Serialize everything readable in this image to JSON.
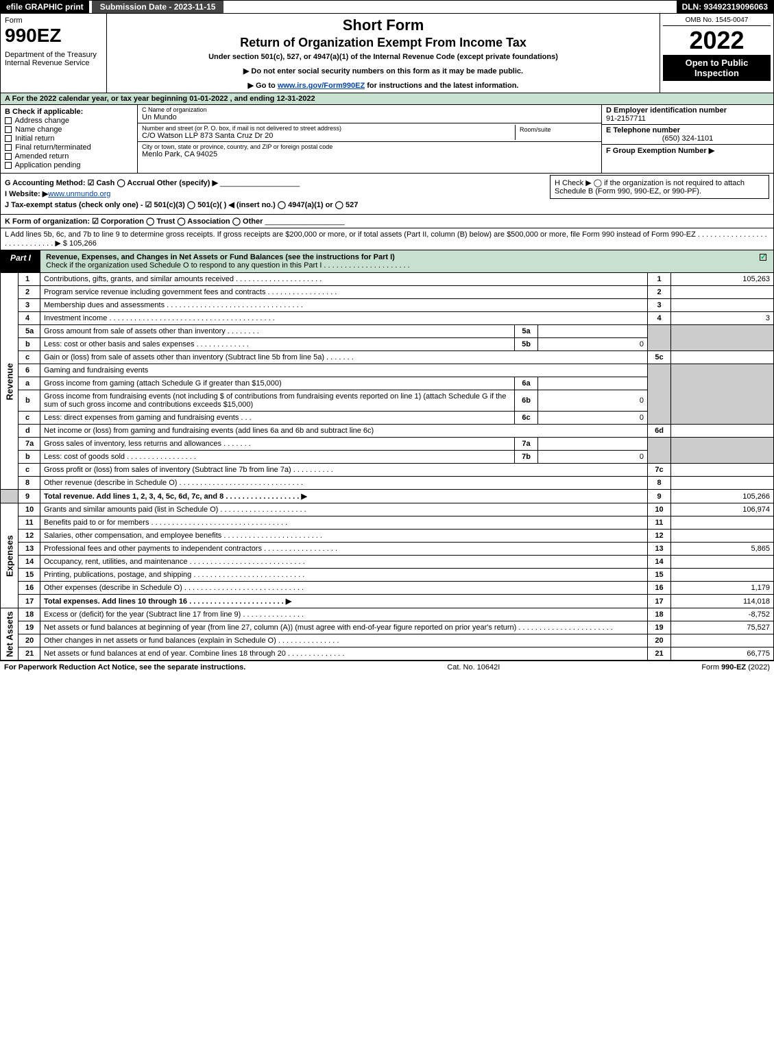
{
  "topbar": {
    "efile": "efile GRAPHIC print",
    "submission": "Submission Date - 2023-11-15",
    "dln": "DLN: 93492319096063"
  },
  "header": {
    "form_label": "Form",
    "form_number": "990EZ",
    "dept": "Department of the Treasury\nInternal Revenue Service",
    "title1": "Short Form",
    "title2": "Return of Organization Exempt From Income Tax",
    "subtitle": "Under section 501(c), 527, or 4947(a)(1) of the Internal Revenue Code (except private foundations)",
    "instr1": "▶ Do not enter social security numbers on this form as it may be made public.",
    "instr2_pre": "▶ Go to ",
    "instr2_link": "www.irs.gov/Form990EZ",
    "instr2_post": " for instructions and the latest information.",
    "omb": "OMB No. 1545-0047",
    "year": "2022",
    "inspection": "Open to Public Inspection"
  },
  "A": "A  For the 2022 calendar year, or tax year beginning 01-01-2022 , and ending 12-31-2022",
  "B": {
    "label": "B  Check if applicable:",
    "opts": [
      "Address change",
      "Name change",
      "Initial return",
      "Final return/terminated",
      "Amended return",
      "Application pending"
    ]
  },
  "C": {
    "name_label": "C Name of organization",
    "name": "Un Mundo",
    "addr_label": "Number and street (or P. O. box, if mail is not delivered to street address)",
    "addr": "C/O Watson LLP 873 Santa Cruz Dr 20",
    "room_label": "Room/suite",
    "city_label": "City or town, state or province, country, and ZIP or foreign postal code",
    "city": "Menlo Park, CA  94025"
  },
  "D": {
    "label": "D Employer identification number",
    "value": "91-2157711"
  },
  "E": {
    "label": "E Telephone number",
    "value": "(650) 324-1101"
  },
  "F": {
    "label": "F Group Exemption Number   ▶",
    "value": ""
  },
  "G": "G Accounting Method:   ☑ Cash  ◯ Accrual   Other (specify) ▶",
  "H": "H   Check ▶  ◯  if the organization is not required to attach Schedule B (Form 990, 990-EZ, or 990-PF).",
  "I_pre": "I Website: ▶",
  "I_link": "www.unmundo.org",
  "J": "J Tax-exempt status (check only one) - ☑ 501(c)(3) ◯ 501(c)(  ) ◀ (insert no.) ◯ 4947(a)(1) or ◯ 527",
  "K": "K Form of organization:   ☑ Corporation   ◯ Trust   ◯ Association   ◯ Other",
  "L": {
    "text": "L Add lines 5b, 6c, and 7b to line 9 to determine gross receipts. If gross receipts are $200,000 or more, or if total assets (Part II, column (B) below) are $500,000 or more, file Form 990 instead of Form 990-EZ . . . . . . . . . . . . . . . . . . . . . . . . . . . . . ▶ $",
    "value": "105,266"
  },
  "part1": {
    "tab": "Part I",
    "title": "Revenue, Expenses, and Changes in Net Assets or Fund Balances (see the instructions for Part I)",
    "subtitle": "Check if the organization used Schedule O to respond to any question in this Part I . . . . . . . . . . . . . . . . . . . . ."
  },
  "sides": {
    "rev": "Revenue",
    "exp": "Expenses",
    "net": "Net Assets"
  },
  "lines": {
    "l1": {
      "n": "1",
      "d": "Contributions, gifts, grants, and similar amounts received",
      "rn": "1",
      "rv": "105,263"
    },
    "l2": {
      "n": "2",
      "d": "Program service revenue including government fees and contracts",
      "rn": "2",
      "rv": ""
    },
    "l3": {
      "n": "3",
      "d": "Membership dues and assessments",
      "rn": "3",
      "rv": ""
    },
    "l4": {
      "n": "4",
      "d": "Investment income",
      "rn": "4",
      "rv": "3"
    },
    "l5a": {
      "n": "5a",
      "d": "Gross amount from sale of assets other than inventory",
      "in": "5a",
      "iv": ""
    },
    "l5b": {
      "n": "b",
      "d": "Less: cost or other basis and sales expenses",
      "in": "5b",
      "iv": "0"
    },
    "l5c": {
      "n": "c",
      "d": "Gain or (loss) from sale of assets other than inventory (Subtract line 5b from line 5a)",
      "rn": "5c",
      "rv": ""
    },
    "l6": {
      "n": "6",
      "d": "Gaming and fundraising events"
    },
    "l6a": {
      "n": "a",
      "d": "Gross income from gaming (attach Schedule G if greater than $15,000)",
      "in": "6a",
      "iv": ""
    },
    "l6b": {
      "n": "b",
      "d": "Gross income from fundraising events (not including $                  of contributions from fundraising events reported on line 1) (attach Schedule G if the sum of such gross income and contributions exceeds $15,000)",
      "in": "6b",
      "iv": "0"
    },
    "l6c": {
      "n": "c",
      "d": "Less: direct expenses from gaming and fundraising events",
      "in": "6c",
      "iv": "0"
    },
    "l6d": {
      "n": "d",
      "d": "Net income or (loss) from gaming and fundraising events (add lines 6a and 6b and subtract line 6c)",
      "rn": "6d",
      "rv": ""
    },
    "l7a": {
      "n": "7a",
      "d": "Gross sales of inventory, less returns and allowances",
      "in": "7a",
      "iv": ""
    },
    "l7b": {
      "n": "b",
      "d": "Less: cost of goods sold",
      "in": "7b",
      "iv": "0"
    },
    "l7c": {
      "n": "c",
      "d": "Gross profit or (loss) from sales of inventory (Subtract line 7b from line 7a)",
      "rn": "7c",
      "rv": ""
    },
    "l8": {
      "n": "8",
      "d": "Other revenue (describe in Schedule O)",
      "rn": "8",
      "rv": ""
    },
    "l9": {
      "n": "9",
      "d": "Total revenue. Add lines 1, 2, 3, 4, 5c, 6d, 7c, and 8   . . . . . . . . . . . . . . . . . .  ▶",
      "rn": "9",
      "rv": "105,266"
    },
    "l10": {
      "n": "10",
      "d": "Grants and similar amounts paid (list in Schedule O)",
      "rn": "10",
      "rv": "106,974"
    },
    "l11": {
      "n": "11",
      "d": "Benefits paid to or for members",
      "rn": "11",
      "rv": ""
    },
    "l12": {
      "n": "12",
      "d": "Salaries, other compensation, and employee benefits",
      "rn": "12",
      "rv": ""
    },
    "l13": {
      "n": "13",
      "d": "Professional fees and other payments to independent contractors",
      "rn": "13",
      "rv": "5,865"
    },
    "l14": {
      "n": "14",
      "d": "Occupancy, rent, utilities, and maintenance",
      "rn": "14",
      "rv": ""
    },
    "l15": {
      "n": "15",
      "d": "Printing, publications, postage, and shipping",
      "rn": "15",
      "rv": ""
    },
    "l16": {
      "n": "16",
      "d": "Other expenses (describe in Schedule O)",
      "rn": "16",
      "rv": "1,179"
    },
    "l17": {
      "n": "17",
      "d": "Total expenses. Add lines 10 through 16    . . . . . . . . . . . . . . . . . . . . . . .  ▶",
      "rn": "17",
      "rv": "114,018"
    },
    "l18": {
      "n": "18",
      "d": "Excess or (deficit) for the year (Subtract line 17 from line 9)",
      "rn": "18",
      "rv": "-8,752"
    },
    "l19": {
      "n": "19",
      "d": "Net assets or fund balances at beginning of year (from line 27, column (A)) (must agree with end-of-year figure reported on prior year's return)",
      "rn": "19",
      "rv": "75,527"
    },
    "l20": {
      "n": "20",
      "d": "Other changes in net assets or fund balances (explain in Schedule O)",
      "rn": "20",
      "rv": ""
    },
    "l21": {
      "n": "21",
      "d": "Net assets or fund balances at end of year. Combine lines 18 through 20",
      "rn": "21",
      "rv": "66,775"
    }
  },
  "footer": {
    "left": "For Paperwork Reduction Act Notice, see the separate instructions.",
    "mid": "Cat. No. 10642I",
    "right_pre": "Form ",
    "right_bold": "990-EZ",
    "right_post": " (2022)"
  },
  "colors": {
    "green_bg": "#c8e0d0",
    "black": "#000000",
    "grey": "#cccccc",
    "link": "#0645ad"
  }
}
